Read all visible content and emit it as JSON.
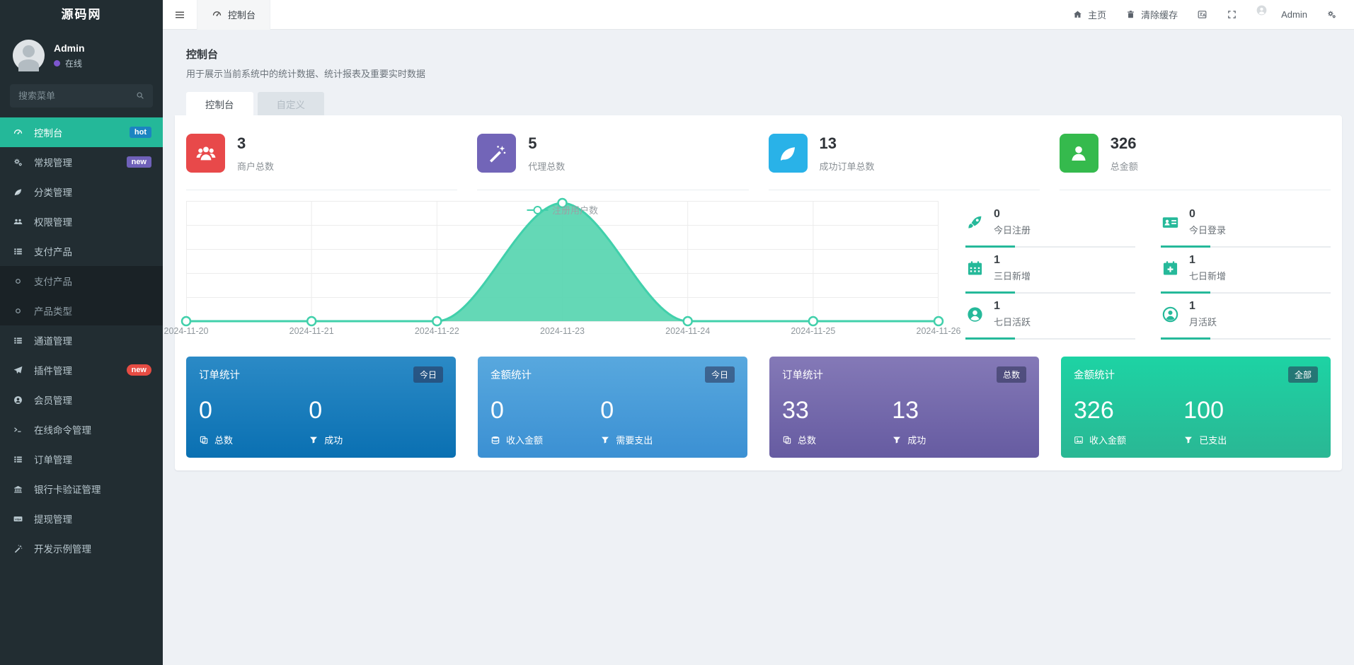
{
  "app": {
    "logo": "源码网"
  },
  "sidebar": {
    "user": {
      "name": "Admin",
      "status": "在线"
    },
    "search_placeholder": "搜索菜单",
    "search_icon": "search-icon",
    "items": [
      {
        "icon": "gauge-icon",
        "label": "控制台",
        "badge": "hot",
        "badge_style": "blue",
        "active": true
      },
      {
        "icon": "gears-icon",
        "label": "常规管理",
        "badge": "new",
        "badge_style": "purple"
      },
      {
        "icon": "leaf-icon",
        "label": "分类管理"
      },
      {
        "icon": "users-icon",
        "label": "权限管理",
        "arrow": "left"
      },
      {
        "icon": "list-icon",
        "label": "支付产品",
        "arrow": "down",
        "children": [
          {
            "icon": "circle-icon",
            "label": "支付产品"
          },
          {
            "icon": "circle-icon",
            "label": "产品类型"
          }
        ]
      },
      {
        "icon": "list-icon",
        "label": "通道管理",
        "arrow": "left"
      },
      {
        "icon": "paper-plane-icon",
        "label": "插件管理",
        "badge": "new",
        "badge_style": "red-pill"
      },
      {
        "icon": "user-circle-icon",
        "label": "会员管理",
        "arrow": "left"
      },
      {
        "icon": "terminal-icon",
        "label": "在线命令管理"
      },
      {
        "icon": "list-icon",
        "label": "订单管理",
        "arrow": "left"
      },
      {
        "icon": "bank-icon",
        "label": "银行卡验证管理",
        "arrow": "left"
      },
      {
        "icon": "visa-icon",
        "label": "提现管理",
        "arrow": "left"
      },
      {
        "icon": "magic-wand-icon",
        "label": "开发示例管理",
        "arrow": "left"
      }
    ]
  },
  "topbar": {
    "menu_icon": "hamburger-icon",
    "tab": {
      "icon": "gauge-icon",
      "label": "控制台"
    },
    "home_label": "主页",
    "clear_cache_label": "清除缓存",
    "language_icon": "language-icon",
    "fullscreen_icon": "fullscreen-icon",
    "admin_label": "Admin",
    "settings_icon": "cogs-icon"
  },
  "page": {
    "title": "控制台",
    "subtitle": "用于展示当前系统中的统计数据、统计报表及重要实时数据",
    "tabs": [
      {
        "label": "控制台",
        "active": true
      },
      {
        "label": "自定义",
        "active": false
      }
    ]
  },
  "stats_cards": [
    {
      "icon": "users-group-icon",
      "color": "#e8494a",
      "value": "3",
      "label": "商户总数"
    },
    {
      "icon": "magic-wand-icon",
      "color": "#7265b8",
      "value": "5",
      "label": "代理总数"
    },
    {
      "icon": "leaf-icon",
      "color": "#29b2e8",
      "value": "13",
      "label": "成功订单总数"
    },
    {
      "icon": "person-icon",
      "color": "#35ba4d",
      "value": "326",
      "label": "总金额"
    }
  ],
  "chart_data": {
    "type": "area",
    "title": "",
    "categories": [
      "2024-11-20",
      "2024-11-21",
      "2024-11-22",
      "2024-11-23",
      "2024-11-24",
      "2024-11-25",
      "2024-11-26"
    ],
    "series": [
      {
        "name": "注册用户数",
        "values": [
          0,
          0,
          0,
          1,
          0,
          0,
          0
        ]
      }
    ],
    "ylim": [
      0,
      1
    ],
    "grid": true,
    "legend_position": "top-center",
    "line_color": "#41d0ab",
    "fill_color": "#5cd6b2"
  },
  "quick_stats": [
    {
      "icon": "rocket-icon",
      "value": "0",
      "label": "今日注册"
    },
    {
      "icon": "id-card-icon",
      "value": "0",
      "label": "今日登录"
    },
    {
      "icon": "calendar-icon",
      "value": "1",
      "label": "三日新增"
    },
    {
      "icon": "calendar-plus-icon",
      "value": "1",
      "label": "七日新增"
    },
    {
      "icon": "user-solid-icon",
      "value": "1",
      "label": "七日活跃"
    },
    {
      "icon": "user-ring-icon",
      "value": "1",
      "label": "月活跃"
    }
  ],
  "summary_cards": [
    {
      "title": "订单统计",
      "badge": "今日",
      "gradient": [
        "#2b8ac6",
        "#0a70b2"
      ],
      "metrics": [
        {
          "icon": "clone-icon",
          "label": "总数",
          "value": "0"
        },
        {
          "icon": "funnel-icon",
          "label": "成功",
          "value": "0"
        }
      ]
    },
    {
      "title": "金额统计",
      "badge": "今日",
      "gradient": [
        "#58a8de",
        "#3b90d3"
      ],
      "metrics": [
        {
          "icon": "database-icon",
          "label": "收入金额",
          "value": "0"
        },
        {
          "icon": "funnel-icon",
          "label": "需要支出",
          "value": "0"
        }
      ]
    },
    {
      "title": "订单统计",
      "badge": "总数",
      "gradient": [
        "#8479b7",
        "#665ba1"
      ],
      "metrics": [
        {
          "icon": "clone-icon",
          "label": "总数",
          "value": "33"
        },
        {
          "icon": "funnel-icon",
          "label": "成功",
          "value": "13"
        }
      ]
    },
    {
      "title": "金额统计",
      "badge": "全部",
      "gradient": [
        "#1dd3a4",
        "#2ab794"
      ],
      "metrics": [
        {
          "icon": "image-icon",
          "label": "收入金额",
          "value": "326"
        },
        {
          "icon": "funnel-icon",
          "label": "已支出",
          "value": "100"
        }
      ]
    }
  ]
}
